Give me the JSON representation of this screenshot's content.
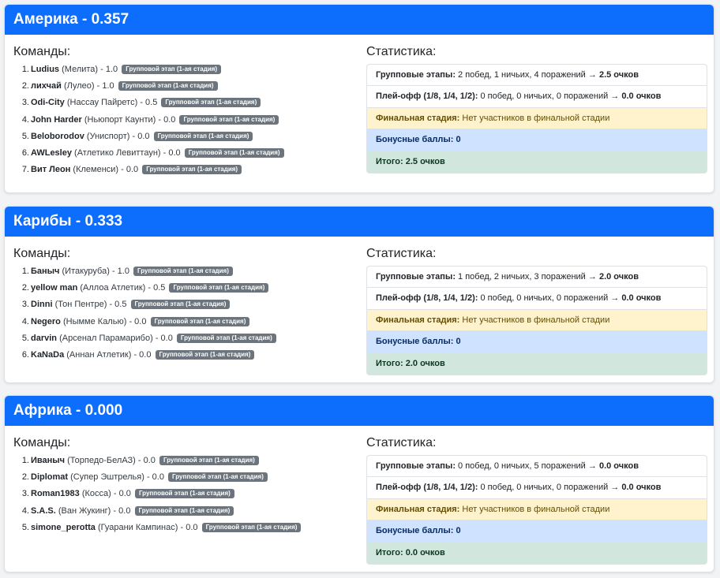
{
  "labels": {
    "teams_title": "Команды:",
    "stats_title": "Статистика:",
    "group_label": "Групповые этапы:",
    "playoff_label": "Плей-офф (1/8, 1/4, 1/2):",
    "final_label": "Финальная стадия:",
    "bonus_label": "Бонусные баллы:",
    "total_label": "Итого:",
    "badge": "Групповой этап (1-ая стадия)"
  },
  "regions": [
    {
      "title": "Америка - 0.357",
      "teams": [
        {
          "num": "1.",
          "name": "Ludius",
          "city": "(Мелита)",
          "score": "- 1.0"
        },
        {
          "num": "2.",
          "name": "лихчай",
          "city": "(Лулео)",
          "score": "- 1.0"
        },
        {
          "num": "3.",
          "name": "Odi-City",
          "city": "(Нассау Пайретс)",
          "score": "- 0.5"
        },
        {
          "num": "4.",
          "name": "John Harder",
          "city": "(Ньюпорт Каунти)",
          "score": "- 0.0"
        },
        {
          "num": "5.",
          "name": "Beloborodov",
          "city": "(Униспорт)",
          "score": "- 0.0"
        },
        {
          "num": "6.",
          "name": "AWLesley",
          "city": "(Атлетико Левиттаун)",
          "score": "- 0.0"
        },
        {
          "num": "7.",
          "name": "Вит Леон",
          "city": "(Клеменси)",
          "score": "- 0.0"
        }
      ],
      "stats": {
        "group_value": "2 побед, 1 ничьих, 4 поражений",
        "group_points": "→ 2.5 очков",
        "playoff_value": "0 побед, 0 ничьих, 0 поражений",
        "playoff_points": "→ 0.0 очков",
        "final_value": "Нет участников в финальной стадии",
        "bonus_value": "0",
        "total_value": "2.5 очков"
      }
    },
    {
      "title": "Карибы - 0.333",
      "teams": [
        {
          "num": "1.",
          "name": "Баныч",
          "city": "(Итакуруба)",
          "score": "- 1.0"
        },
        {
          "num": "2.",
          "name": "yellow man",
          "city": "(Аллоа Атлетик)",
          "score": "- 0.5"
        },
        {
          "num": "3.",
          "name": "Dinni",
          "city": "(Тон Пентре)",
          "score": "- 0.5"
        },
        {
          "num": "4.",
          "name": "Negero",
          "city": "(Нымме Калью)",
          "score": "- 0.0"
        },
        {
          "num": "5.",
          "name": "darvin",
          "city": "(Арсенал Парамарибо)",
          "score": "- 0.0"
        },
        {
          "num": "6.",
          "name": "KaNaDa",
          "city": "(Аннан Атлетик)",
          "score": "- 0.0"
        }
      ],
      "stats": {
        "group_value": "1 побед, 2 ничьих, 3 поражений",
        "group_points": "→ 2.0 очков",
        "playoff_value": "0 побед, 0 ничьих, 0 поражений",
        "playoff_points": "→ 0.0 очков",
        "final_value": "Нет участников в финальной стадии",
        "bonus_value": "0",
        "total_value": "2.0 очков"
      }
    },
    {
      "title": "Африка - 0.000",
      "teams": [
        {
          "num": "1.",
          "name": "Иваныч",
          "city": "(Торпедо-БелАЗ)",
          "score": "- 0.0"
        },
        {
          "num": "2.",
          "name": "Diplomat",
          "city": "(Супер Эштрелья)",
          "score": "- 0.0"
        },
        {
          "num": "3.",
          "name": "Roman1983",
          "city": "(Косса)",
          "score": "- 0.0"
        },
        {
          "num": "4.",
          "name": "S.A.S.",
          "city": "(Ван Жукинг)",
          "score": "- 0.0"
        },
        {
          "num": "5.",
          "name": "simone_perotta",
          "city": "(Гуарани Кампинас)",
          "score": "- 0.0"
        }
      ],
      "stats": {
        "group_value": "0 побед, 0 ничьих, 5 поражений",
        "group_points": "→ 0.0 очков",
        "playoff_value": "0 побед, 0 ничьих, 0 поражений",
        "playoff_points": "→ 0.0 очков",
        "final_value": "Нет участников в финальной стадии",
        "bonus_value": "0",
        "total_value": "0.0 очков"
      }
    }
  ]
}
